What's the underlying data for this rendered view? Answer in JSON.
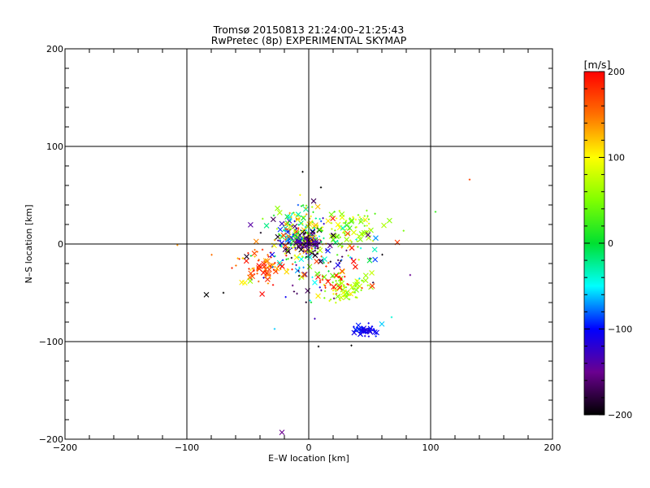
{
  "chart_data": {
    "type": "scatter",
    "title": "Tromsø 20150813 21:24:00–21:25:43",
    "subtitle": "RwPretec (8p) EXPERIMENTAL SKYMAP",
    "xlabel": "E–W location [km]",
    "ylabel": "N–S location [km]",
    "xlim": [
      -200,
      200
    ],
    "ylim": [
      -200,
      200
    ],
    "x_ticks": [
      -200,
      -100,
      0,
      100,
      200
    ],
    "y_ticks": [
      -200,
      -100,
      0,
      100,
      200
    ],
    "x_tick_labels": [
      "−200",
      "−100",
      "0",
      "100",
      "200"
    ],
    "y_tick_labels": [
      "−200",
      "−100",
      "0",
      "100",
      "200"
    ],
    "grid": true,
    "colorbar": {
      "label": "[m/s]",
      "range": [
        -200,
        200
      ],
      "ticks": [
        200,
        100,
        0,
        -100,
        -200
      ],
      "tick_labels": [
        "200",
        "100",
        "0",
        "−100",
        "−200"
      ]
    },
    "clusters": [
      {
        "cx": -8,
        "cy": 5,
        "sx": 10,
        "sy": 9,
        "n": 170,
        "vel": [
          -200,
          200
        ]
      },
      {
        "cx": 0,
        "cy": 0,
        "sx": 5,
        "sy": 5,
        "n": 60,
        "vel": [
          -200,
          -120
        ]
      },
      {
        "cx": 32,
        "cy": 17,
        "sx": 14,
        "sy": 9,
        "n": 90,
        "vel": [
          20,
          110
        ]
      },
      {
        "cx": -10,
        "cy": 25,
        "sx": 12,
        "sy": 10,
        "n": 60,
        "vel": [
          -40,
          140
        ]
      },
      {
        "cx": -38,
        "cy": -25,
        "sx": 12,
        "sy": 9,
        "n": 80,
        "vel": [
          100,
          200
        ]
      },
      {
        "cx": 30,
        "cy": -45,
        "sx": 9,
        "sy": 7,
        "n": 70,
        "vel": [
          40,
          110
        ]
      },
      {
        "cx": 21,
        "cy": -39,
        "sx": 6,
        "sy": 4,
        "n": 25,
        "vel": [
          170,
          200
        ]
      },
      {
        "cx": 45,
        "cy": -88,
        "sx": 5,
        "sy": 3,
        "n": 45,
        "vel": [
          -120,
          -90
        ]
      },
      {
        "cx": 15,
        "cy": -20,
        "sx": 22,
        "sy": 18,
        "n": 80,
        "vel": [
          -200,
          200
        ]
      },
      {
        "cx": 5,
        "cy": -5,
        "sx": 30,
        "sy": 25,
        "n": 60,
        "vel": [
          -200,
          200
        ]
      }
    ],
    "outliers": [
      {
        "x": -84,
        "y": -52,
        "vel": -200,
        "marker": "x"
      },
      {
        "x": -70,
        "y": -50,
        "vel": -200,
        "marker": "+"
      },
      {
        "x": -22,
        "y": -193,
        "vel": -150,
        "marker": "x"
      },
      {
        "x": 132,
        "y": 66,
        "vel": 170,
        "marker": "+"
      },
      {
        "x": 104,
        "y": 33,
        "vel": 20,
        "marker": "+"
      },
      {
        "x": -5,
        "y": 74,
        "vel": -200,
        "marker": "+"
      },
      {
        "x": 10,
        "y": 58,
        "vel": -200,
        "marker": "+"
      },
      {
        "x": 4,
        "y": 44,
        "vel": -170,
        "marker": "x"
      },
      {
        "x": 35,
        "y": -104,
        "vel": -200,
        "marker": "+"
      },
      {
        "x": 8,
        "y": -105,
        "vel": -200,
        "marker": "+"
      },
      {
        "x": -28,
        "y": -87,
        "vel": -60,
        "marker": "+"
      },
      {
        "x": 60,
        "y": -82,
        "vel": -60,
        "marker": "x"
      },
      {
        "x": -48,
        "y": -38,
        "vel": 60,
        "marker": "x"
      },
      {
        "x": 68,
        "y": -75,
        "vel": -40,
        "marker": "+"
      }
    ]
  }
}
